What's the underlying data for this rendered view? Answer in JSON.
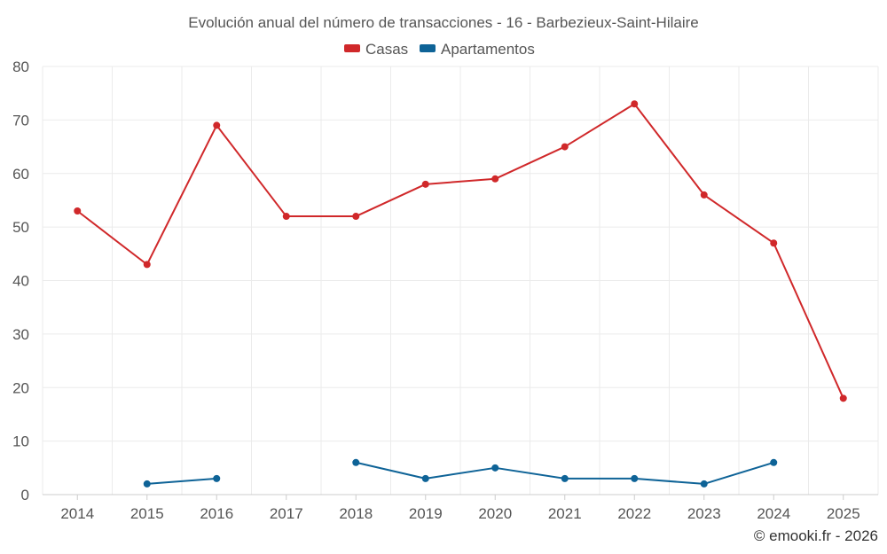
{
  "chart_data": {
    "type": "line",
    "title": "Evolución anual del número de transacciones - 16 - Barbezieux-Saint-Hilaire",
    "categories": [
      "2014",
      "2015",
      "2016",
      "2017",
      "2018",
      "2019",
      "2020",
      "2021",
      "2022",
      "2023",
      "2024",
      "2025"
    ],
    "ylim": [
      0,
      80
    ],
    "yticks": [
      0,
      10,
      20,
      30,
      40,
      50,
      60,
      70,
      80
    ],
    "grid": true,
    "legend_position": "top-center",
    "series": [
      {
        "name": "Casas",
        "color": "#d0282a",
        "values": [
          53,
          43,
          69,
          52,
          52,
          58,
          59,
          65,
          73,
          56,
          47,
          18
        ]
      },
      {
        "name": "Apartamentos",
        "color": "#0e6397",
        "values": [
          null,
          2,
          3,
          null,
          6,
          3,
          5,
          3,
          3,
          2,
          6,
          null
        ]
      }
    ],
    "credit": "© emooki.fr - 2026"
  }
}
